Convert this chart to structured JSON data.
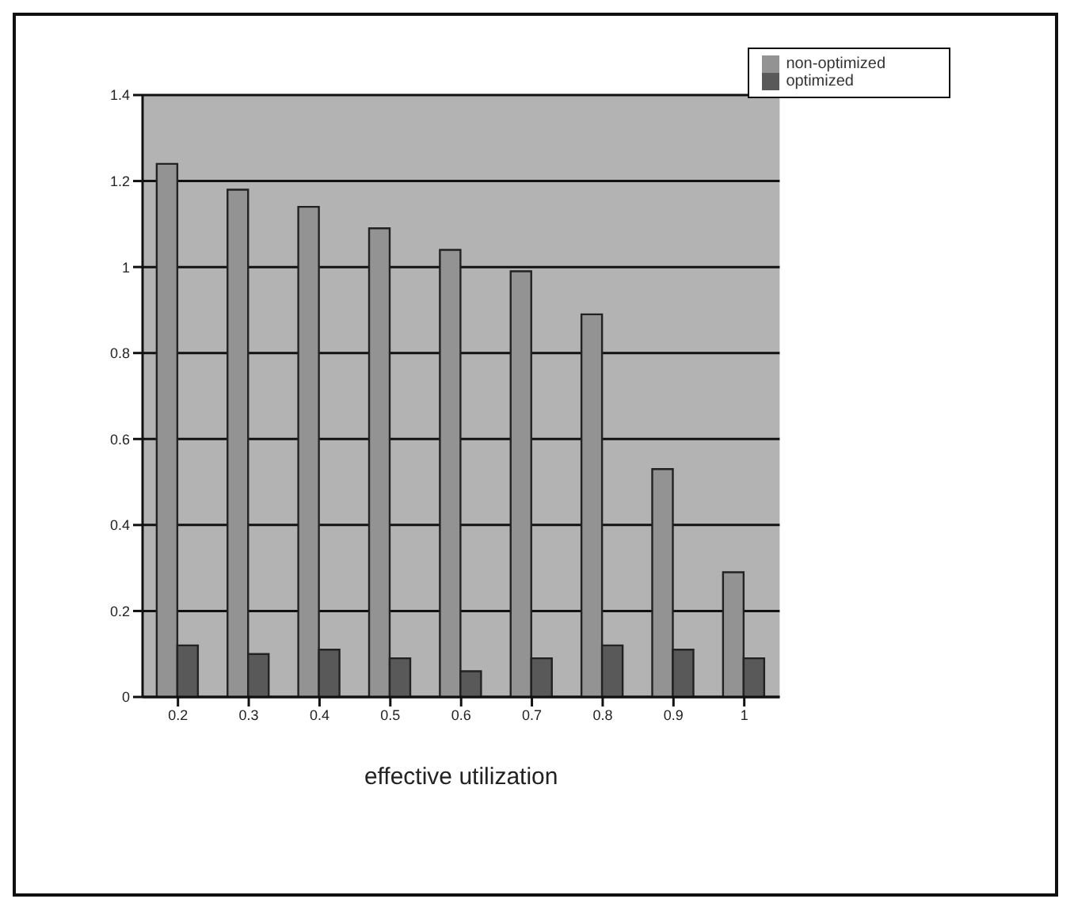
{
  "chart_data": {
    "type": "bar",
    "xlabel": "effective utilization",
    "categories": [
      "0.2",
      "0.3",
      "0.4",
      "0.5",
      "0.6",
      "0.7",
      "0.8",
      "0.9",
      "1"
    ],
    "series": [
      {
        "name": "non-optimized",
        "color": "#939393",
        "values": [
          1.24,
          1.18,
          1.14,
          1.09,
          1.04,
          0.99,
          0.89,
          0.53,
          0.29
        ]
      },
      {
        "name": "optimized",
        "color": "#595959",
        "values": [
          0.12,
          0.1,
          0.11,
          0.09,
          0.06,
          0.09,
          0.12,
          0.11,
          0.09
        ]
      }
    ],
    "ylim": [
      0,
      1.4
    ],
    "yticks": [
      0,
      0.2,
      0.4,
      0.6,
      0.8,
      1,
      1.2,
      1.4
    ],
    "grid": "y",
    "legend": "top right"
  }
}
